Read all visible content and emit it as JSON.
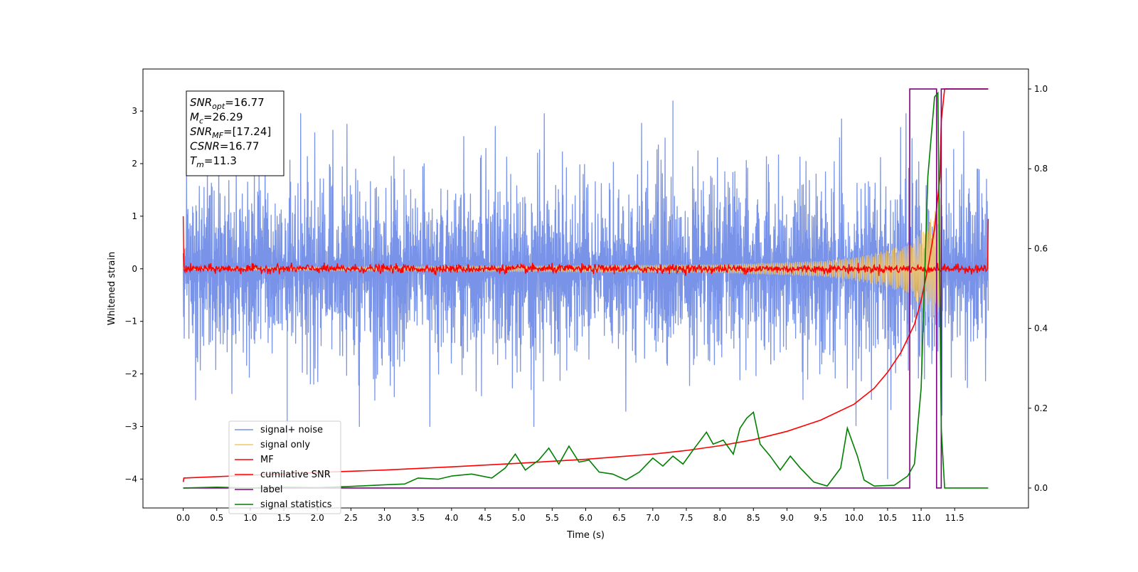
{
  "chart_data": {
    "type": "line",
    "xlabel": "Time (s)",
    "ylabel": "Whitened strain",
    "xlim": [
      -0.6,
      12.6
    ],
    "ylim_left": [
      -4.55,
      3.8
    ],
    "ylim_right": [
      -0.05,
      1.05
    ],
    "x_ticks": [
      0.0,
      0.5,
      1.0,
      1.5,
      2.0,
      2.5,
      3.0,
      3.5,
      4.0,
      4.5,
      5.0,
      5.5,
      6.0,
      6.5,
      7.0,
      7.5,
      8.0,
      8.5,
      9.0,
      9.5,
      10.0,
      10.5,
      11.0,
      11.5
    ],
    "x_tick_labels": [
      "0.0",
      "0.5",
      "1.0",
      "1.5",
      "2.0",
      "2.5",
      "3.0",
      "3.5",
      "4.0",
      "4.5",
      "5.0",
      "5.5",
      "6.0",
      "6.5",
      "7.0",
      "7.5",
      "8.0",
      "8.5",
      "9.0",
      "9.5",
      "10.0",
      "10.5",
      "11.0",
      "11.5"
    ],
    "y_ticks_left": [
      -4,
      -3,
      -2,
      -1,
      0,
      1,
      2,
      3
    ],
    "y_tick_labels_left": [
      "−4",
      "−3",
      "−2",
      "−1",
      "0",
      "1",
      "2",
      "3"
    ],
    "y_ticks_right": [
      0.0,
      0.2,
      0.4,
      0.6,
      0.8,
      1.0
    ],
    "y_tick_labels_right": [
      "0.0",
      "0.2",
      "0.4",
      "0.6",
      "0.8",
      "1.0"
    ],
    "grid": false,
    "legend_position": "lower-left",
    "annotation": {
      "lines": [
        {
          "base": "SNR",
          "sub": "opt",
          "value": "=16.77"
        },
        {
          "base": "M",
          "sub": "c",
          "value": "=26.29"
        },
        {
          "base": "SNR",
          "sub": "MF",
          "value": "=[17.24]"
        },
        {
          "base": "CSNR",
          "sub": "",
          "value": "=16.77"
        },
        {
          "base": "T",
          "sub": "m",
          "value": "=11.3"
        }
      ]
    },
    "series": [
      {
        "name": "signal+ noise",
        "color": "#7893e8",
        "axis": "left",
        "description_range": [
          0.0,
          12.0
        ],
        "amplitude_sd": 0.95,
        "peak_values": [
          [
            7.3,
            3.2
          ],
          [
            1.55,
            -3.3
          ],
          [
            10.5,
            -4.0
          ]
        ]
      },
      {
        "name": "signal only",
        "color": "#f4c76b",
        "axis": "left",
        "x_range": [
          0.0,
          11.3
        ],
        "envelope": [
          [
            0.0,
            0.02
          ],
          [
            8.0,
            0.08
          ],
          [
            9.5,
            0.15
          ],
          [
            10.0,
            0.22
          ],
          [
            10.5,
            0.35
          ],
          [
            10.8,
            0.5
          ],
          [
            11.0,
            0.7
          ],
          [
            11.2,
            1.1
          ],
          [
            11.3,
            1.4
          ]
        ]
      },
      {
        "name": "MF",
        "color": "#ff0000",
        "axis": "left",
        "x_range": [
          0.0,
          12.0
        ],
        "start_value": 1.0,
        "baseline": 0.0,
        "noise_sd": 0.04,
        "end_value": 0.95
      },
      {
        "name": "cumilative SNR",
        "color": "#ff0000",
        "axis": "right",
        "x": [
          0.0,
          0.01,
          1.0,
          2.0,
          3.0,
          4.0,
          5.0,
          6.0,
          7.0,
          7.5,
          8.0,
          8.5,
          9.0,
          9.5,
          10.0,
          10.3,
          10.5,
          10.7,
          10.9,
          11.0,
          11.1,
          11.2,
          11.28,
          11.3,
          11.35,
          12.0
        ],
        "values": [
          0.015,
          0.025,
          0.032,
          0.039,
          0.045,
          0.053,
          0.062,
          0.072,
          0.085,
          0.094,
          0.106,
          0.121,
          0.142,
          0.17,
          0.21,
          0.25,
          0.29,
          0.34,
          0.41,
          0.47,
          0.55,
          0.65,
          0.78,
          0.92,
          1.0,
          1.0
        ]
      },
      {
        "name": "label",
        "color": "#800080",
        "axis": "right",
        "x": [
          0.0,
          10.83,
          10.83,
          11.23,
          11.23,
          11.3,
          11.3,
          12.0
        ],
        "values": [
          0.0,
          0.0,
          1.0,
          1.0,
          0.0,
          0.0,
          1.0,
          1.0
        ]
      },
      {
        "name": "signal statistics",
        "color": "#008000",
        "axis": "right",
        "x": [
          0.0,
          0.5,
          1.0,
          1.5,
          2.0,
          2.5,
          3.0,
          3.3,
          3.5,
          3.8,
          4.0,
          4.3,
          4.6,
          4.8,
          4.95,
          5.1,
          5.3,
          5.45,
          5.6,
          5.75,
          5.9,
          6.05,
          6.2,
          6.4,
          6.6,
          6.8,
          7.0,
          7.15,
          7.3,
          7.45,
          7.6,
          7.8,
          7.9,
          8.05,
          8.2,
          8.3,
          8.4,
          8.5,
          8.6,
          8.75,
          8.9,
          9.05,
          9.2,
          9.4,
          9.6,
          9.8,
          9.9,
          10.05,
          10.15,
          10.3,
          10.6,
          10.8,
          10.9,
          11.0,
          11.1,
          11.2,
          11.25,
          11.3,
          11.35,
          12.0
        ],
        "values": [
          0.0,
          0.002,
          0.0,
          0.002,
          0.001,
          0.004,
          0.008,
          0.01,
          0.025,
          0.022,
          0.03,
          0.035,
          0.025,
          0.05,
          0.085,
          0.045,
          0.07,
          0.1,
          0.06,
          0.105,
          0.065,
          0.07,
          0.04,
          0.035,
          0.02,
          0.04,
          0.075,
          0.055,
          0.08,
          0.06,
          0.095,
          0.14,
          0.11,
          0.12,
          0.085,
          0.15,
          0.175,
          0.19,
          0.11,
          0.08,
          0.045,
          0.08,
          0.05,
          0.015,
          0.005,
          0.05,
          0.15,
          0.08,
          0.02,
          0.005,
          0.007,
          0.03,
          0.06,
          0.25,
          0.78,
          0.98,
          0.99,
          0.15,
          0.0,
          0.0
        ]
      }
    ]
  }
}
